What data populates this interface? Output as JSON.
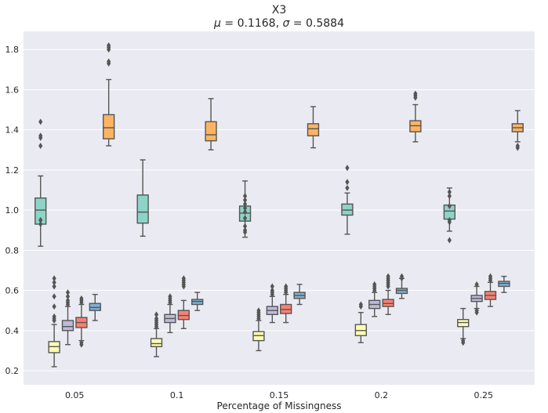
{
  "chart_data": {
    "type": "box",
    "title": "X3",
    "subtitle_parts": {
      "mu_symbol": "μ",
      "mu_value": "0.1168",
      "sigma_symbol": "σ",
      "sigma_value": "0.5884"
    },
    "xlabel": "Percentage of Missingness",
    "ylabel": "",
    "categories": [
      "0.05",
      "0.1",
      "0.15",
      "0.2",
      "0.25"
    ],
    "ylim": [
      0.13,
      1.89
    ],
    "yticks": [
      "0.2",
      "0.4",
      "0.6",
      "0.8",
      "1.0",
      "1.2",
      "1.4",
      "1.6",
      "1.8"
    ],
    "grid": true,
    "legend": "none",
    "series": [
      {
        "color": "#8dd3c7",
        "boxes": [
          {
            "whislo": 0.82,
            "q1": 0.93,
            "med": 1.0,
            "q3": 1.06,
            "whishi": 1.17,
            "fliers": [
              1.44,
              1.37,
              1.36,
              1.32,
              0.95,
              0.93
            ]
          },
          {
            "whislo": 0.87,
            "q1": 0.935,
            "med": 0.99,
            "q3": 1.075,
            "whishi": 1.25,
            "fliers": []
          },
          {
            "whislo": 0.865,
            "q1": 0.945,
            "med": 0.985,
            "q3": 1.02,
            "whishi": 1.145,
            "fliers": [
              1.07,
              1.05,
              1.03,
              1.01,
              0.99,
              0.96,
              0.92,
              0.9,
              0.89
            ]
          },
          {
            "whislo": 0.88,
            "q1": 0.975,
            "med": 1.0,
            "q3": 1.03,
            "whishi": 1.085,
            "fliers": [
              1.21,
              1.14,
              1.11
            ]
          },
          {
            "whislo": 0.895,
            "q1": 0.955,
            "med": 0.995,
            "q3": 1.025,
            "whishi": 1.11,
            "fliers": [
              1.09,
              1.07,
              1.02,
              0.95,
              0.94,
              0.85
            ]
          }
        ]
      },
      {
        "color": "#ffffb3",
        "boxes": [
          {
            "whislo": 0.22,
            "q1": 0.29,
            "med": 0.32,
            "q3": 0.345,
            "whishi": 0.43,
            "fliers": [
              0.66,
              0.64,
              0.62,
              0.57,
              0.52,
              0.47,
              0.46,
              0.45
            ]
          },
          {
            "whislo": 0.27,
            "q1": 0.32,
            "med": 0.335,
            "q3": 0.36,
            "whishi": 0.41,
            "fliers": [
              0.48,
              0.46,
              0.45,
              0.44,
              0.43,
              0.42
            ]
          },
          {
            "whislo": 0.3,
            "q1": 0.35,
            "med": 0.375,
            "q3": 0.395,
            "whishi": 0.45,
            "fliers": [
              0.5,
              0.49,
              0.48,
              0.47,
              0.46
            ]
          },
          {
            "whislo": 0.34,
            "q1": 0.375,
            "med": 0.4,
            "q3": 0.43,
            "whishi": 0.49,
            "fliers": [
              0.53,
              0.52
            ]
          },
          {
            "whislo": 0.36,
            "q1": 0.42,
            "med": 0.44,
            "q3": 0.455,
            "whishi": 0.51,
            "fliers": [
              0.35,
              0.34
            ]
          }
        ]
      },
      {
        "color": "#bebada",
        "boxes": [
          {
            "whislo": 0.33,
            "q1": 0.4,
            "med": 0.42,
            "q3": 0.45,
            "whishi": 0.52,
            "fliers": [
              0.59,
              0.57,
              0.55,
              0.54,
              0.53
            ]
          },
          {
            "whislo": 0.39,
            "q1": 0.44,
            "med": 0.46,
            "q3": 0.48,
            "whishi": 0.53,
            "fliers": [
              0.57,
              0.56,
              0.55,
              0.54
            ]
          },
          {
            "whislo": 0.44,
            "q1": 0.48,
            "med": 0.5,
            "q3": 0.52,
            "whishi": 0.57,
            "fliers": [
              0.62,
              0.6,
              0.59,
              0.58
            ]
          },
          {
            "whislo": 0.47,
            "q1": 0.51,
            "med": 0.53,
            "q3": 0.55,
            "whishi": 0.59,
            "fliers": [
              0.63,
              0.62,
              0.61,
              0.6
            ]
          },
          {
            "whislo": 0.51,
            "q1": 0.545,
            "med": 0.56,
            "q3": 0.575,
            "whishi": 0.62,
            "fliers": [
              0.63,
              0.5,
              0.49
            ]
          }
        ]
      },
      {
        "color": "#fb8072",
        "boxes": [
          {
            "whislo": 0.35,
            "q1": 0.415,
            "med": 0.44,
            "q3": 0.465,
            "whishi": 0.53,
            "fliers": [
              0.56,
              0.55,
              0.54,
              0.34,
              0.33
            ]
          },
          {
            "whislo": 0.41,
            "q1": 0.455,
            "med": 0.475,
            "q3": 0.5,
            "whishi": 0.55,
            "fliers": [
              0.66,
              0.65,
              0.64,
              0.63,
              0.62
            ]
          },
          {
            "whislo": 0.44,
            "q1": 0.485,
            "med": 0.505,
            "q3": 0.53,
            "whishi": 0.58,
            "fliers": [
              0.62,
              0.61,
              0.6,
              0.59
            ]
          },
          {
            "whislo": 0.48,
            "q1": 0.52,
            "med": 0.535,
            "q3": 0.555,
            "whishi": 0.6,
            "fliers": [
              0.67,
              0.66,
              0.65,
              0.64,
              0.63,
              0.62
            ]
          },
          {
            "whislo": 0.52,
            "q1": 0.555,
            "med": 0.575,
            "q3": 0.595,
            "whishi": 0.64,
            "fliers": [
              0.67,
              0.66,
              0.65
            ]
          }
        ]
      },
      {
        "color": "#80b1d3",
        "boxes": [
          {
            "whislo": 0.45,
            "q1": 0.5,
            "med": 0.515,
            "q3": 0.535,
            "whishi": 0.58,
            "fliers": []
          },
          {
            "whislo": 0.5,
            "q1": 0.53,
            "med": 0.545,
            "q3": 0.555,
            "whishi": 0.59,
            "fliers": []
          },
          {
            "whislo": 0.53,
            "q1": 0.56,
            "med": 0.575,
            "q3": 0.59,
            "whishi": 0.63,
            "fliers": []
          },
          {
            "whislo": 0.56,
            "q1": 0.585,
            "med": 0.6,
            "q3": 0.61,
            "whishi": 0.66,
            "fliers": [
              0.67,
              0.66
            ]
          },
          {
            "whislo": 0.59,
            "q1": 0.62,
            "med": 0.635,
            "q3": 0.645,
            "whishi": 0.67,
            "fliers": []
          }
        ]
      },
      {
        "color": "#fdb462",
        "boxes": [
          {
            "whislo": 1.32,
            "q1": 1.355,
            "med": 1.41,
            "q3": 1.475,
            "whishi": 1.65,
            "fliers": [
              1.82,
              1.81,
              1.8,
              1.74,
              1.73
            ]
          },
          {
            "whislo": 1.3,
            "q1": 1.345,
            "med": 1.375,
            "q3": 1.44,
            "whishi": 1.555,
            "fliers": []
          },
          {
            "whislo": 1.31,
            "q1": 1.37,
            "med": 1.405,
            "q3": 1.43,
            "whishi": 1.515,
            "fliers": []
          },
          {
            "whislo": 1.34,
            "q1": 1.39,
            "med": 1.42,
            "q3": 1.445,
            "whishi": 1.525,
            "fliers": [
              1.58,
              1.57,
              1.56
            ]
          },
          {
            "whislo": 1.34,
            "q1": 1.39,
            "med": 1.41,
            "q3": 1.43,
            "whishi": 1.495,
            "fliers": [
              1.32,
              1.31
            ]
          }
        ]
      }
    ]
  }
}
